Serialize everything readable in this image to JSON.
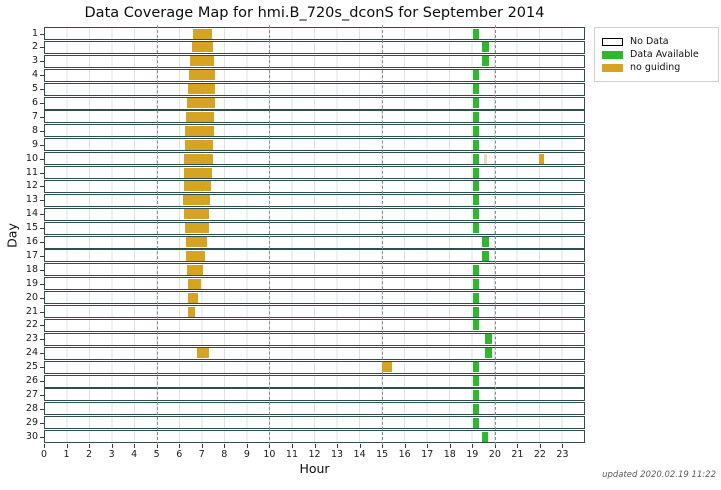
{
  "title": "Data Coverage Map for hmi.B_720s_dconS for September 2014",
  "footer": "updated 2020.02.19 11:22",
  "legend": [
    {
      "label": "No Data",
      "color": "#ffffff",
      "border": "#000000"
    },
    {
      "label": "Data Available",
      "color": "#2fb82f",
      "border": "#2fb82f"
    },
    {
      "label": "no guiding",
      "color": "#d7a322",
      "border": "#d7a322"
    }
  ],
  "chart_data": {
    "type": "heatmap",
    "title": "Data Coverage Map for hmi.B_720s_dconS for September 2014",
    "xlabel": "Hour",
    "ylabel": "Day",
    "x_range": [
      0,
      24
    ],
    "x_ticks": [
      0,
      1,
      2,
      3,
      4,
      5,
      6,
      7,
      8,
      9,
      10,
      11,
      12,
      13,
      14,
      15,
      16,
      17,
      18,
      19,
      20,
      21,
      22,
      23
    ],
    "y_ticks": [
      1,
      2,
      3,
      4,
      5,
      6,
      7,
      8,
      9,
      10,
      11,
      12,
      13,
      14,
      15,
      16,
      17,
      18,
      19,
      20,
      21,
      22,
      23,
      24,
      25,
      26,
      27,
      28,
      29,
      30
    ],
    "grid": {
      "minor_line_every_hour": true,
      "dashdot_hours": [
        5,
        10,
        15,
        20
      ]
    },
    "legend_entries": [
      "No Data",
      "Data Available",
      "no guiding"
    ],
    "legend_position": "upper right outside",
    "status_colors": {
      "no_data": "#ffffff",
      "data_available": "#2fb82f",
      "no_guiding": "#d7a322",
      "no_guiding_faint": "#e9dcb4",
      "bar_edge": "#2f4f4f"
    },
    "background_status": "no_data",
    "segments": [
      {
        "day": 1,
        "start": 6.6,
        "end": 7.45,
        "status": "no_guiding"
      },
      {
        "day": 1,
        "start": 19.02,
        "end": 19.28,
        "status": "data_available"
      },
      {
        "day": 2,
        "start": 6.55,
        "end": 7.5,
        "status": "no_guiding"
      },
      {
        "day": 2,
        "start": 19.42,
        "end": 19.72,
        "status": "data_available"
      },
      {
        "day": 3,
        "start": 6.47,
        "end": 7.55,
        "status": "no_guiding"
      },
      {
        "day": 3,
        "start": 19.42,
        "end": 19.72,
        "status": "data_available"
      },
      {
        "day": 4,
        "start": 6.42,
        "end": 7.57,
        "status": "no_guiding"
      },
      {
        "day": 4,
        "start": 19.02,
        "end": 19.28,
        "status": "data_available"
      },
      {
        "day": 5,
        "start": 6.38,
        "end": 7.57,
        "status": "no_guiding"
      },
      {
        "day": 5,
        "start": 19.02,
        "end": 19.28,
        "status": "data_available"
      },
      {
        "day": 6,
        "start": 6.34,
        "end": 7.57,
        "status": "no_guiding"
      },
      {
        "day": 6,
        "start": 19.02,
        "end": 19.28,
        "status": "data_available"
      },
      {
        "day": 7,
        "start": 6.3,
        "end": 7.55,
        "status": "no_guiding"
      },
      {
        "day": 7,
        "start": 19.02,
        "end": 19.28,
        "status": "data_available"
      },
      {
        "day": 8,
        "start": 6.27,
        "end": 7.54,
        "status": "no_guiding"
      },
      {
        "day": 8,
        "start": 19.02,
        "end": 19.28,
        "status": "data_available"
      },
      {
        "day": 9,
        "start": 6.24,
        "end": 7.51,
        "status": "no_guiding"
      },
      {
        "day": 9,
        "start": 19.02,
        "end": 19.28,
        "status": "data_available"
      },
      {
        "day": 10,
        "start": 6.23,
        "end": 7.48,
        "status": "no_guiding"
      },
      {
        "day": 10,
        "start": 19.02,
        "end": 19.28,
        "status": "data_available"
      },
      {
        "day": 10,
        "start": 19.5,
        "end": 19.66,
        "status": "no_guiding_faint"
      },
      {
        "day": 10,
        "start": 21.95,
        "end": 22.2,
        "status": "no_guiding"
      },
      {
        "day": 11,
        "start": 6.21,
        "end": 7.44,
        "status": "no_guiding"
      },
      {
        "day": 11,
        "start": 19.02,
        "end": 19.28,
        "status": "data_available"
      },
      {
        "day": 12,
        "start": 6.19,
        "end": 7.4,
        "status": "no_guiding"
      },
      {
        "day": 12,
        "start": 19.02,
        "end": 19.28,
        "status": "data_available"
      },
      {
        "day": 13,
        "start": 6.18,
        "end": 7.35,
        "status": "no_guiding"
      },
      {
        "day": 13,
        "start": 19.02,
        "end": 19.28,
        "status": "data_available"
      },
      {
        "day": 14,
        "start": 6.2,
        "end": 7.32,
        "status": "no_guiding"
      },
      {
        "day": 14,
        "start": 19.02,
        "end": 19.28,
        "status": "data_available"
      },
      {
        "day": 15,
        "start": 6.24,
        "end": 7.3,
        "status": "no_guiding"
      },
      {
        "day": 15,
        "start": 19.02,
        "end": 19.28,
        "status": "data_available"
      },
      {
        "day": 16,
        "start": 6.28,
        "end": 7.24,
        "status": "no_guiding"
      },
      {
        "day": 16,
        "start": 19.42,
        "end": 19.72,
        "status": "data_available"
      },
      {
        "day": 17,
        "start": 6.32,
        "end": 7.15,
        "status": "no_guiding"
      },
      {
        "day": 17,
        "start": 19.42,
        "end": 19.72,
        "status": "data_available"
      },
      {
        "day": 18,
        "start": 6.35,
        "end": 7.05,
        "status": "no_guiding"
      },
      {
        "day": 18,
        "start": 19.02,
        "end": 19.28,
        "status": "data_available"
      },
      {
        "day": 19,
        "start": 6.38,
        "end": 6.95,
        "status": "no_guiding"
      },
      {
        "day": 19,
        "start": 19.02,
        "end": 19.28,
        "status": "data_available"
      },
      {
        "day": 20,
        "start": 6.39,
        "end": 6.85,
        "status": "no_guiding"
      },
      {
        "day": 20,
        "start": 19.02,
        "end": 19.28,
        "status": "data_available"
      },
      {
        "day": 21,
        "start": 6.41,
        "end": 6.72,
        "status": "no_guiding"
      },
      {
        "day": 21,
        "start": 19.02,
        "end": 19.28,
        "status": "data_available"
      },
      {
        "day": 22,
        "start": 19.02,
        "end": 19.28,
        "status": "data_available"
      },
      {
        "day": 23,
        "start": 19.58,
        "end": 19.88,
        "status": "data_available"
      },
      {
        "day": 24,
        "start": 6.78,
        "end": 7.3,
        "status": "no_guiding"
      },
      {
        "day": 24,
        "start": 19.58,
        "end": 19.88,
        "status": "data_available"
      },
      {
        "day": 25,
        "start": 14.98,
        "end": 15.43,
        "status": "no_guiding"
      },
      {
        "day": 25,
        "start": 19.02,
        "end": 19.28,
        "status": "data_available"
      },
      {
        "day": 26,
        "start": 19.02,
        "end": 19.28,
        "status": "data_available"
      },
      {
        "day": 27,
        "start": 19.02,
        "end": 19.28,
        "status": "data_available"
      },
      {
        "day": 28,
        "start": 19.02,
        "end": 19.28,
        "status": "data_available"
      },
      {
        "day": 29,
        "start": 19.02,
        "end": 19.28,
        "status": "data_available"
      },
      {
        "day": 30,
        "start": 19.42,
        "end": 19.7,
        "status": "data_available"
      }
    ]
  }
}
